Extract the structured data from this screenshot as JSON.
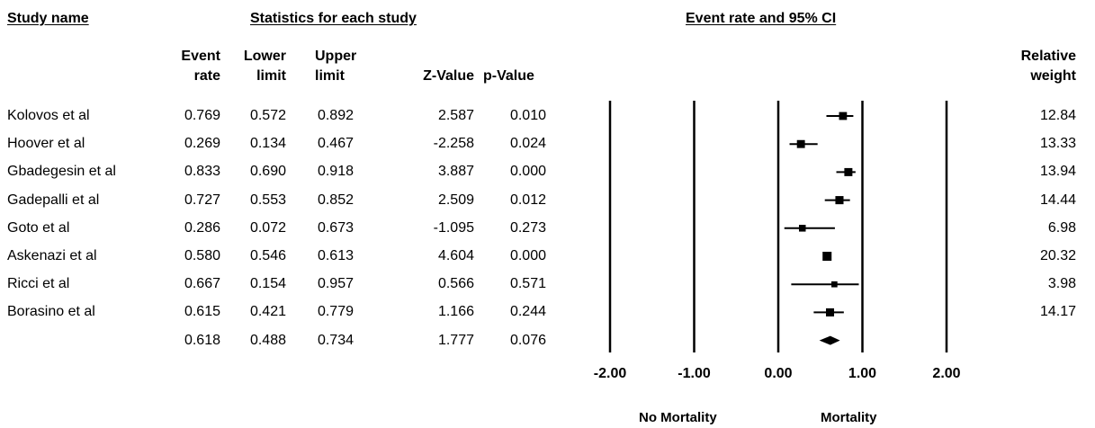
{
  "headers": {
    "study_name": "Study name",
    "stats_group": "Statistics for each study",
    "ci_group": "Event rate and 95% CI",
    "event_rate": [
      "Event",
      "rate"
    ],
    "lower_limit": [
      "Lower",
      "limit"
    ],
    "upper_limit": [
      "Upper",
      "limit"
    ],
    "z_value": "Z-Value",
    "p_value": "p-Value",
    "relative_weight": [
      "Relative",
      "weight"
    ]
  },
  "footer": {
    "left_label": "No Mortality",
    "right_label": "Mortality"
  },
  "chart_data": {
    "type": "forest",
    "x_ticks": [
      "-2.00",
      "-1.00",
      "0.00",
      "1.00",
      "2.00"
    ],
    "xlim": [
      -2,
      2
    ],
    "studies": [
      {
        "name": "Kolovos et al",
        "event_rate": 0.769,
        "lower": 0.572,
        "upper": 0.892,
        "z": "2.587",
        "p": "0.010",
        "weight": "12.84",
        "er_text": "0.769",
        "lo_text": "0.572",
        "up_text": "0.892"
      },
      {
        "name": "Hoover et al",
        "event_rate": 0.269,
        "lower": 0.134,
        "upper": 0.467,
        "z": "-2.258",
        "p": "0.024",
        "weight": "13.33",
        "er_text": "0.269",
        "lo_text": "0.134",
        "up_text": "0.467"
      },
      {
        "name": "Gbadegesin et al",
        "event_rate": 0.833,
        "lower": 0.69,
        "upper": 0.918,
        "z": "3.887",
        "p": "0.000",
        "weight": "13.94",
        "er_text": "0.833",
        "lo_text": "0.690",
        "up_text": "0.918"
      },
      {
        "name": "Gadepalli et al",
        "event_rate": 0.727,
        "lower": 0.553,
        "upper": 0.852,
        "z": "2.509",
        "p": "0.012",
        "weight": "14.44",
        "er_text": "0.727",
        "lo_text": "0.553",
        "up_text": "0.852"
      },
      {
        "name": "Goto et al",
        "event_rate": 0.286,
        "lower": 0.072,
        "upper": 0.673,
        "z": "-1.095",
        "p": "0.273",
        "weight": "6.98",
        "er_text": "0.286",
        "lo_text": "0.072",
        "up_text": "0.673"
      },
      {
        "name": "Askenazi et al",
        "event_rate": 0.58,
        "lower": 0.546,
        "upper": 0.613,
        "z": "4.604",
        "p": "0.000",
        "weight": "20.32",
        "er_text": "0.580",
        "lo_text": "0.546",
        "up_text": "0.613"
      },
      {
        "name": "Ricci et al",
        "event_rate": 0.667,
        "lower": 0.154,
        "upper": 0.957,
        "z": "0.566",
        "p": "0.571",
        "weight": "3.98",
        "er_text": "0.667",
        "lo_text": "0.154",
        "up_text": "0.957"
      },
      {
        "name": "Borasino et al",
        "event_rate": 0.615,
        "lower": 0.421,
        "upper": 0.779,
        "z": "1.166",
        "p": "0.244",
        "weight": "14.17",
        "er_text": "0.615",
        "lo_text": "0.421",
        "up_text": "0.779"
      }
    ],
    "summary": {
      "event_rate": 0.618,
      "lower": 0.488,
      "upper": 0.734,
      "z": "1.777",
      "p": "0.076",
      "er_text": "0.618",
      "lo_text": "0.488",
      "up_text": "0.734"
    }
  }
}
